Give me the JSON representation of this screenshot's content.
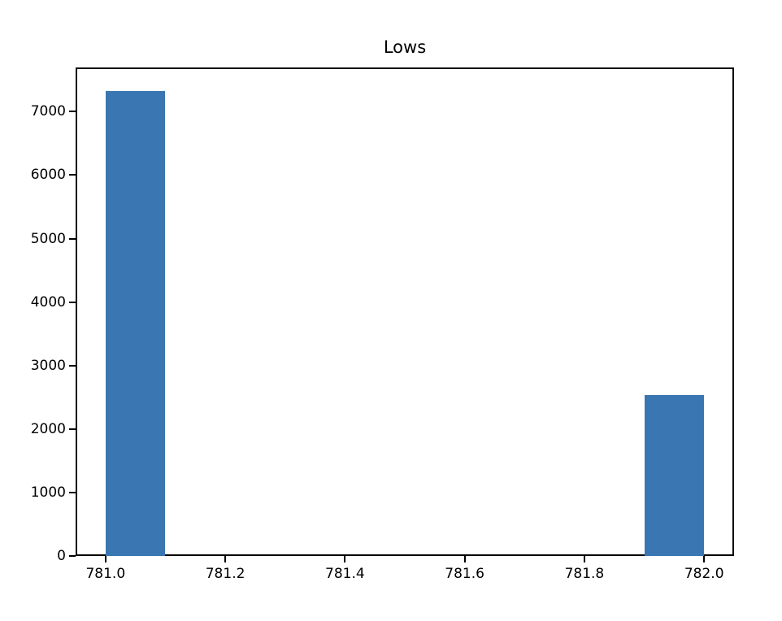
{
  "chart_data": {
    "type": "bar",
    "subtype": "histogram",
    "title": "Lows",
    "bar_color": "#3a76b2",
    "background_color": "#ffffff",
    "spine_color": "#000000",
    "grid": false,
    "legend": null,
    "xlabel": "",
    "ylabel": "",
    "xlim": [
      780.95,
      782.05
    ],
    "ylim": [
      0,
      7696
    ],
    "bars": [
      {
        "x_start": 781.0,
        "x_end": 781.1,
        "value": 7330
      },
      {
        "x_start": 781.9,
        "x_end": 782.0,
        "value": 2530
      }
    ],
    "x_ticks": [
      781.0,
      781.2,
      781.4,
      781.6,
      781.8,
      782.0
    ],
    "x_tick_labels": [
      "781.0",
      "781.2",
      "781.4",
      "781.6",
      "781.8",
      "782.0"
    ],
    "y_ticks": [
      0,
      1000,
      2000,
      3000,
      4000,
      5000,
      6000,
      7000
    ],
    "y_tick_labels": [
      "0",
      "1000",
      "2000",
      "3000",
      "4000",
      "5000",
      "6000",
      "7000"
    ]
  }
}
